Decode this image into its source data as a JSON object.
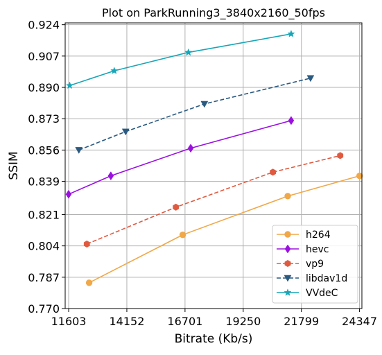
{
  "chart_data": {
    "type": "line",
    "title": "Plot on ParkRunning3_3840x2160_50fps",
    "xlabel": "Bitrate (Kb/s)",
    "ylabel": "SSIM",
    "xlim": [
      11450,
      24450
    ],
    "ylim": [
      0.77,
      0.925
    ],
    "x_ticks": [
      11603,
      14152,
      16701,
      19250,
      21799,
      24347
    ],
    "x_tick_labels": [
      "11603",
      "14152",
      "16701",
      "19250",
      "21799",
      "24347"
    ],
    "y_ticks": [
      0.77,
      0.787,
      0.804,
      0.821,
      0.839,
      0.856,
      0.873,
      0.89,
      0.907,
      0.924
    ],
    "y_tick_labels": [
      "0.770",
      "0.787",
      "0.804",
      "0.821",
      "0.839",
      "0.856",
      "0.873",
      "0.890",
      "0.907",
      "0.924"
    ],
    "grid": true,
    "legend_position": "lower-right",
    "series": [
      {
        "name": "h264",
        "color": "#f0a848",
        "marker": "circle",
        "line_style": "solid",
        "x": [
          12500,
          16600,
          21200,
          24350
        ],
        "y": [
          0.784,
          0.81,
          0.831,
          0.842
        ]
      },
      {
        "name": "hevc",
        "color": "#9b10e0",
        "marker": "diamond",
        "line_style": "solid",
        "x": [
          11600,
          13450,
          16950,
          21350
        ],
        "y": [
          0.832,
          0.842,
          0.857,
          0.872
        ]
      },
      {
        "name": "vp9",
        "color": "#e05a40",
        "marker": "hexagon",
        "line_style": "dashed",
        "x": [
          12400,
          16300,
          20550,
          23500
        ],
        "y": [
          0.805,
          0.825,
          0.844,
          0.853
        ]
      },
      {
        "name": "libdav1d",
        "color": "#2b5a80",
        "marker": "triangle-down",
        "line_style": "dashed",
        "x": [
          12050,
          14100,
          17550,
          22200
        ],
        "y": [
          0.856,
          0.866,
          0.881,
          0.895
        ]
      },
      {
        "name": "VVdeC",
        "color": "#17a6b8",
        "marker": "star",
        "line_style": "solid",
        "x": [
          11650,
          13600,
          16850,
          21350
        ],
        "y": [
          0.891,
          0.899,
          0.909,
          0.919
        ]
      }
    ]
  }
}
